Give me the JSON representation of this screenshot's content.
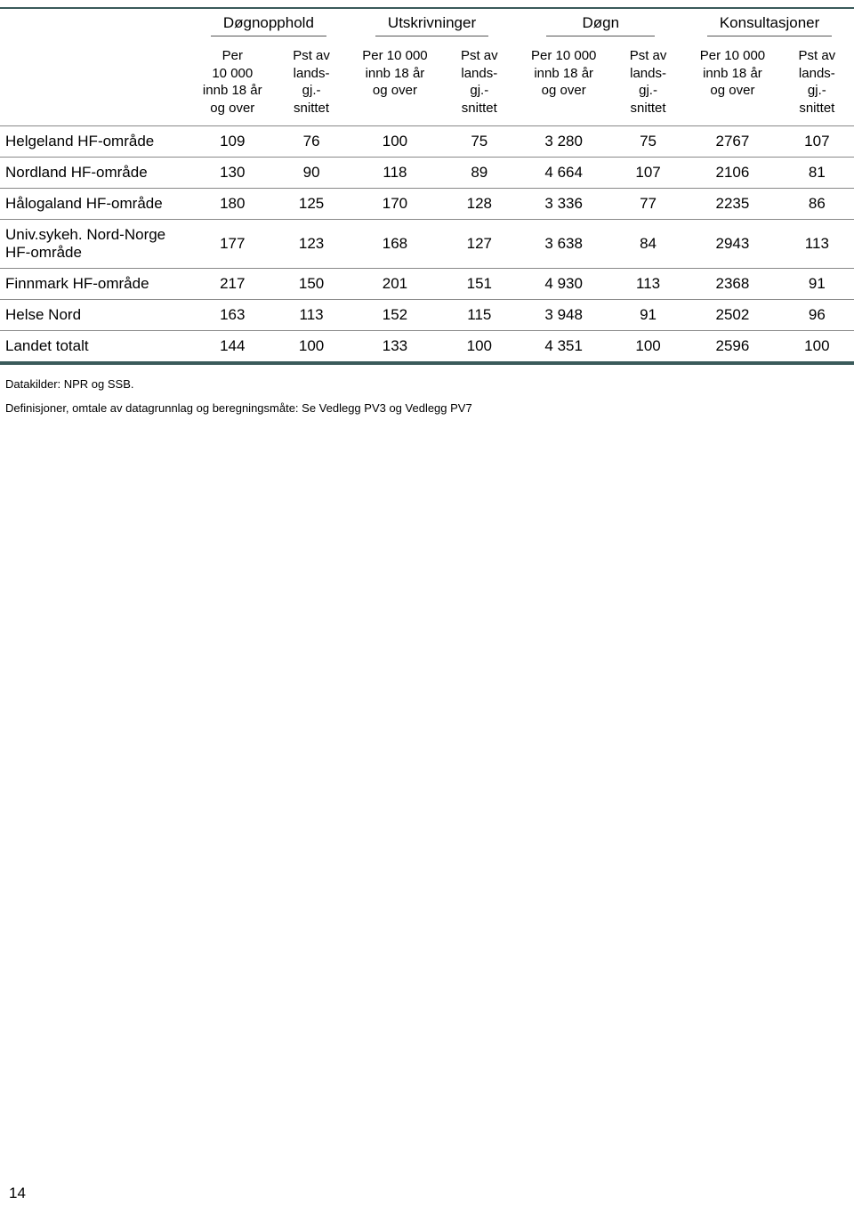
{
  "table": {
    "group_headers": [
      "Døgnopphold",
      "Utskrivninger",
      "Døgn",
      "Konsultasjoner"
    ],
    "sub_headers": {
      "a": "Per\n10 000\ninnb 18 år\nog over",
      "b": "Pst av\nlands-\ngj.-\nsnittet",
      "c": "Per 10 000\ninnb 18 år\nog over",
      "d": "Pst av\nlands-\ngj.-\nsnittet",
      "e": "Per 10 000\ninnb 18 år\nog over",
      "f": "Pst av\nlands-\ngj.-\nsnittet",
      "g": "Per 10 000\ninnb 18 år\nog over",
      "h": "Pst av\nlands-\ngj.-\nsnittet"
    },
    "rows": [
      {
        "label": "Helgeland HF-område",
        "vals": [
          "109",
          "76",
          "100",
          "75",
          "3 280",
          "75",
          "2767",
          "107"
        ]
      },
      {
        "label": "Nordland HF-område",
        "vals": [
          "130",
          "90",
          "118",
          "89",
          "4 664",
          "107",
          "2106",
          "81"
        ]
      },
      {
        "label": "Hålogaland HF-område",
        "vals": [
          "180",
          "125",
          "170",
          "128",
          "3 336",
          "77",
          "2235",
          "86"
        ]
      },
      {
        "label": "Univ.sykeh. Nord-Norge HF-område",
        "vals": [
          "177",
          "123",
          "168",
          "127",
          "3 638",
          "84",
          "2943",
          "113"
        ]
      },
      {
        "label": "Finnmark HF-område",
        "vals": [
          "217",
          "150",
          "201",
          "151",
          "4 930",
          "113",
          "2368",
          "91"
        ]
      },
      {
        "label": "Helse Nord",
        "vals": [
          "163",
          "113",
          "152",
          "115",
          "3 948",
          "91",
          "2502",
          "96"
        ]
      },
      {
        "label": "Landet totalt",
        "vals": [
          "144",
          "100",
          "133",
          "100",
          "4 351",
          "100",
          "2596",
          "100"
        ]
      }
    ],
    "colors": {
      "thick_border": "#3a5a5a",
      "thin_border": "#888888",
      "text": "#000000",
      "background": "#ffffff"
    }
  },
  "footnotes": {
    "line1": "Datakilder: NPR og SSB.",
    "line2": "Definisjoner, omtale av datagrunnlag og beregningsmåte: Se Vedlegg PV3 og Vedlegg PV7"
  },
  "page_number": "14"
}
